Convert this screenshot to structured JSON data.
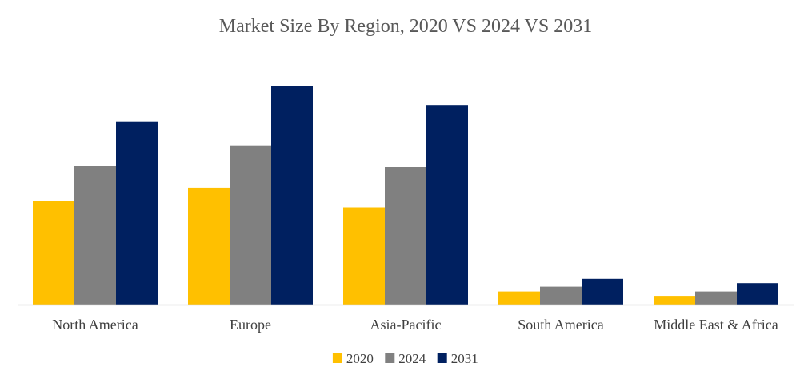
{
  "chart_data": {
    "type": "bar",
    "title": "Market Size By Region, 2020 VS 2024 VS 2031",
    "xlabel": "",
    "ylabel": "",
    "ylim": [
      0,
      100
    ],
    "grid": false,
    "legend_position": "bottom",
    "categories": [
      "North America",
      "Europe",
      "Asia-Pacific",
      "South America",
      "Middle East & Africa"
    ],
    "series": [
      {
        "name": "2020",
        "color": "#FFC000",
        "values": [
          47.5,
          53.5,
          44.5,
          6,
          4
        ]
      },
      {
        "name": "2024",
        "color": "#808080",
        "values": [
          63.5,
          73,
          63,
          8.2,
          6
        ]
      },
      {
        "name": "2031",
        "color": "#002060",
        "values": [
          84,
          100,
          91.5,
          11.8,
          9.8
        ]
      }
    ]
  }
}
